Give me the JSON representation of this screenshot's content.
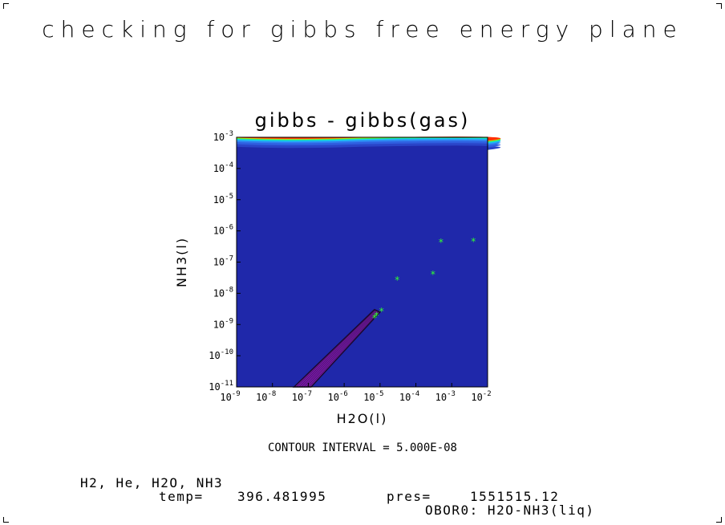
{
  "page_title": "checking for gibbs free energy plane",
  "chart_data": {
    "type": "heatmap",
    "title": "gibbs - gibbs(gas)",
    "xlabel": "H2O(l)",
    "ylabel": "NH3(l)",
    "x_scale": "log",
    "y_scale": "log",
    "xlim": [
      1e-09,
      0.01
    ],
    "ylim": [
      1e-11,
      0.001
    ],
    "x_ticks": [
      {
        "base": "10",
        "exp": "-9"
      },
      {
        "base": "10",
        "exp": "-8"
      },
      {
        "base": "10",
        "exp": "-7"
      },
      {
        "base": "10",
        "exp": "-6"
      },
      {
        "base": "10",
        "exp": "-5"
      },
      {
        "base": "10",
        "exp": "-4"
      },
      {
        "base": "10",
        "exp": "-3"
      },
      {
        "base": "10",
        "exp": "-2"
      }
    ],
    "y_ticks": [
      {
        "base": "10",
        "exp": "-11"
      },
      {
        "base": "10",
        "exp": "-10"
      },
      {
        "base": "10",
        "exp": "-9"
      },
      {
        "base": "10",
        "exp": "-8"
      },
      {
        "base": "10",
        "exp": "-7"
      },
      {
        "base": "10",
        "exp": "-6"
      },
      {
        "base": "10",
        "exp": "-5"
      },
      {
        "base": "10",
        "exp": "-4"
      },
      {
        "base": "10",
        "exp": "-3"
      }
    ],
    "background_color": "#1f28aa",
    "contour_bands": [
      {
        "y_low": 0.0005,
        "color": "#2a44c8"
      },
      {
        "y_low": 0.0006,
        "color": "#2f5fe0"
      },
      {
        "y_low": 0.0007,
        "color": "#2f80f0"
      },
      {
        "y_low": 0.00078,
        "color": "#22b0f5"
      },
      {
        "y_low": 0.00084,
        "color": "#10e0e0"
      },
      {
        "y_low": 0.00088,
        "color": "#20e080"
      },
      {
        "y_low": 0.00091,
        "color": "#50f030"
      },
      {
        "y_low": 0.000935,
        "color": "#c8f020"
      },
      {
        "y_low": 0.000955,
        "color": "#f8c000"
      },
      {
        "y_low": 0.000975,
        "color": "#ff3000"
      }
    ],
    "low_region": {
      "color": "#7a1aa8",
      "edge_color": "#1a0830",
      "points": [
        {
          "x": 4e-08,
          "y": 1e-11
        },
        {
          "x": 7e-06,
          "y": 3e-09
        },
        {
          "x": 1e-05,
          "y": 2.5e-09
        },
        {
          "x": 1.2e-07,
          "y": 1e-11
        }
      ]
    },
    "markers": {
      "symbol": "*",
      "color": "#30ff30",
      "points": [
        {
          "x": 7e-06,
          "y": 1.7e-09
        },
        {
          "x": 8e-06,
          "y": 2e-09
        },
        {
          "x": 1.1e-05,
          "y": 2.8e-09
        },
        {
          "x": 3e-05,
          "y": 2.8e-08
        },
        {
          "x": 0.0003,
          "y": 4.2e-08
        },
        {
          "x": 0.0005,
          "y": 4.5e-07
        },
        {
          "x": 0.004,
          "y": 4.8e-07
        }
      ]
    }
  },
  "contour_label": "CONTOUR INTERVAL = 5.000E-08",
  "footer": {
    "species": "H2, He, H2O, NH3",
    "temp_label": "temp=",
    "temp_value": "396.481995",
    "pres_label": "pres=",
    "pres_value": "1551515.12",
    "model_label": "OBOR0: H2O-NH3(liq)"
  }
}
